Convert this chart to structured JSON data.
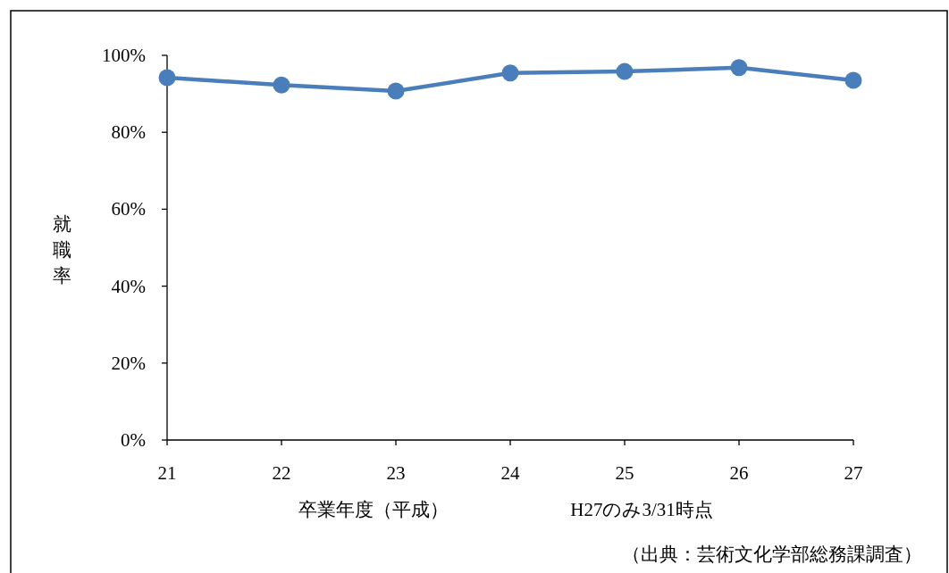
{
  "chart_data": {
    "type": "line",
    "xlabel": "卒業年度（平成）",
    "ylabel": "就職率",
    "x": [
      21,
      22,
      23,
      24,
      25,
      26,
      27
    ],
    "xlim": [
      21,
      27
    ],
    "xticks": [
      21,
      22,
      23,
      24,
      25,
      26,
      27
    ],
    "ylim": [
      0,
      100
    ],
    "yticks": [
      {
        "value": 0,
        "label": "0%"
      },
      {
        "value": 20,
        "label": "20%"
      },
      {
        "value": 40,
        "label": "40%"
      },
      {
        "value": 60,
        "label": "60%"
      },
      {
        "value": 80,
        "label": "80%"
      },
      {
        "value": 100,
        "label": "100%"
      }
    ],
    "series": [
      {
        "color": "#4a7ebb",
        "values": [
          94.2,
          92.3,
          90.7,
          95.4,
          95.8,
          96.8,
          93.5
        ]
      }
    ],
    "marker": "circle",
    "line_style": "solid",
    "annotations": [
      "H27のみ3/31時点",
      "（出典：芸術文化学部総務課調査）"
    ]
  }
}
